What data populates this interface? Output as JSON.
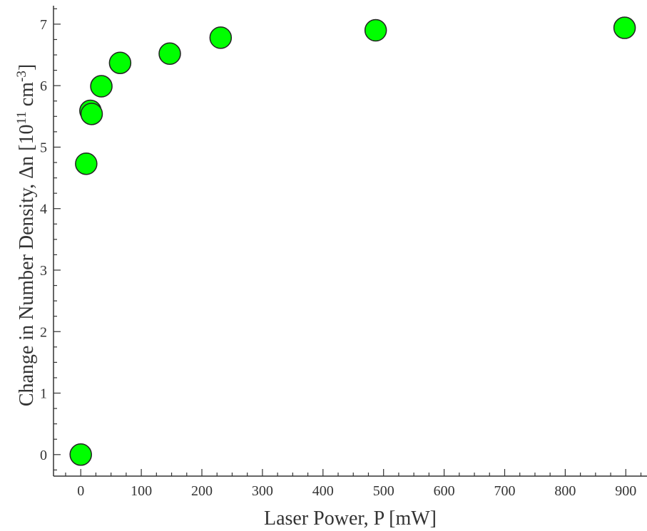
{
  "chart_data": {
    "type": "scatter",
    "title": "",
    "xlabel": "Laser Power, P [mW]",
    "ylabel": {
      "main": "Change in Number Density, Δn [10",
      "sup1": "11",
      "mid": " cm",
      "sup2": "-3",
      "end": "]"
    },
    "xlim": [
      -45,
      935
    ],
    "ylim": [
      -0.35,
      7.3
    ],
    "x_ticks": [
      0,
      100,
      200,
      300,
      400,
      500,
      600,
      700,
      800,
      900
    ],
    "x_tick_labels": [
      "0",
      "100",
      "200",
      "300",
      "400",
      "500",
      "600",
      "700",
      "800",
      "900"
    ],
    "y_ticks": [
      0,
      1,
      2,
      3,
      4,
      5,
      6,
      7
    ],
    "y_tick_labels": [
      "0",
      "1",
      "2",
      "3",
      "4",
      "5",
      "6",
      "7"
    ],
    "x_minor_step": 25,
    "y_minor_step": 0.25,
    "grid": false,
    "marker_color": "#00ff00",
    "series": [
      {
        "x": [
          0,
          9,
          16,
          18,
          34,
          65,
          147,
          231,
          487,
          898
        ],
        "y": [
          0.0,
          4.73,
          5.59,
          5.54,
          5.99,
          6.37,
          6.52,
          6.78,
          6.9,
          6.94
        ]
      }
    ]
  }
}
